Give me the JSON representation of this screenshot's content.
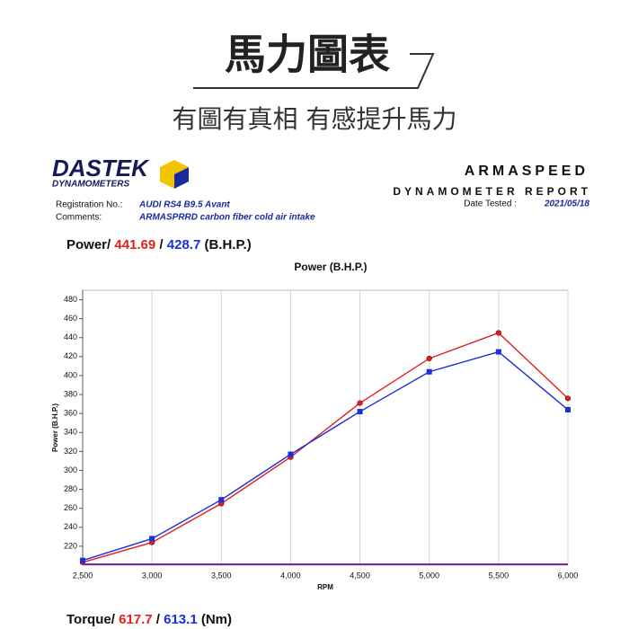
{
  "header": {
    "title": "馬力圖表",
    "subtitle": "有圖有真相 有感提升馬力"
  },
  "report": {
    "logo": "DASTEK",
    "logo_sub": "DYNAMOMETERS",
    "company": "ARMASPEED",
    "report_title": "DYNAMOMETER REPORT",
    "date_label": "Date Tested :",
    "date": "2021/05/18",
    "registration_label": "Registration No.:",
    "registration": "AUDI RS4 B9.5 Avant",
    "comments_label": "Comments:",
    "comments": "ARMASPRRD carbon fiber cold air intake"
  },
  "power_summary": {
    "label": "Power/",
    "value_a": "441.69",
    "sep": "/",
    "value_b": "428.7",
    "unit": "(B.H.P.)"
  },
  "chart_data": {
    "type": "line",
    "title": "Power (B.H.P.)",
    "y_label": "Power (B.H.P.)",
    "x_label": "RPM",
    "x": [
      2500,
      3000,
      3500,
      4000,
      4500,
      5000,
      5500,
      6000
    ],
    "series": [
      {
        "color": "#e02020",
        "values": [
          203,
          224,
          265,
          314,
          371,
          418,
          445,
          376
        ]
      },
      {
        "color": "#1a2ee0",
        "values": [
          205,
          228,
          269,
          317,
          362,
          404,
          425,
          364
        ]
      }
    ],
    "xlim": [
      2500,
      6000
    ],
    "xticks": [
      {
        "value": 2500,
        "label": "2,500"
      },
      {
        "value": 3000,
        "label": "3,000"
      },
      {
        "value": 3500,
        "label": "3,500"
      },
      {
        "value": 4000,
        "label": "4,000"
      },
      {
        "value": 4500,
        "label": "4,500"
      },
      {
        "value": 5000,
        "label": "5,000"
      },
      {
        "value": 5500,
        "label": "5,500"
      },
      {
        "value": 6000,
        "label": "6,000"
      }
    ],
    "ylim": [
      200,
      490
    ],
    "yticks": [
      220,
      240,
      260,
      280,
      300,
      320,
      340,
      360,
      380,
      400,
      420,
      440,
      460,
      480
    ],
    "grid": true
  },
  "torque_summary": {
    "label": "Torque/",
    "value_a": "617.7",
    "sep": "/",
    "value_b": "613.1",
    "unit": "(Nm)"
  }
}
